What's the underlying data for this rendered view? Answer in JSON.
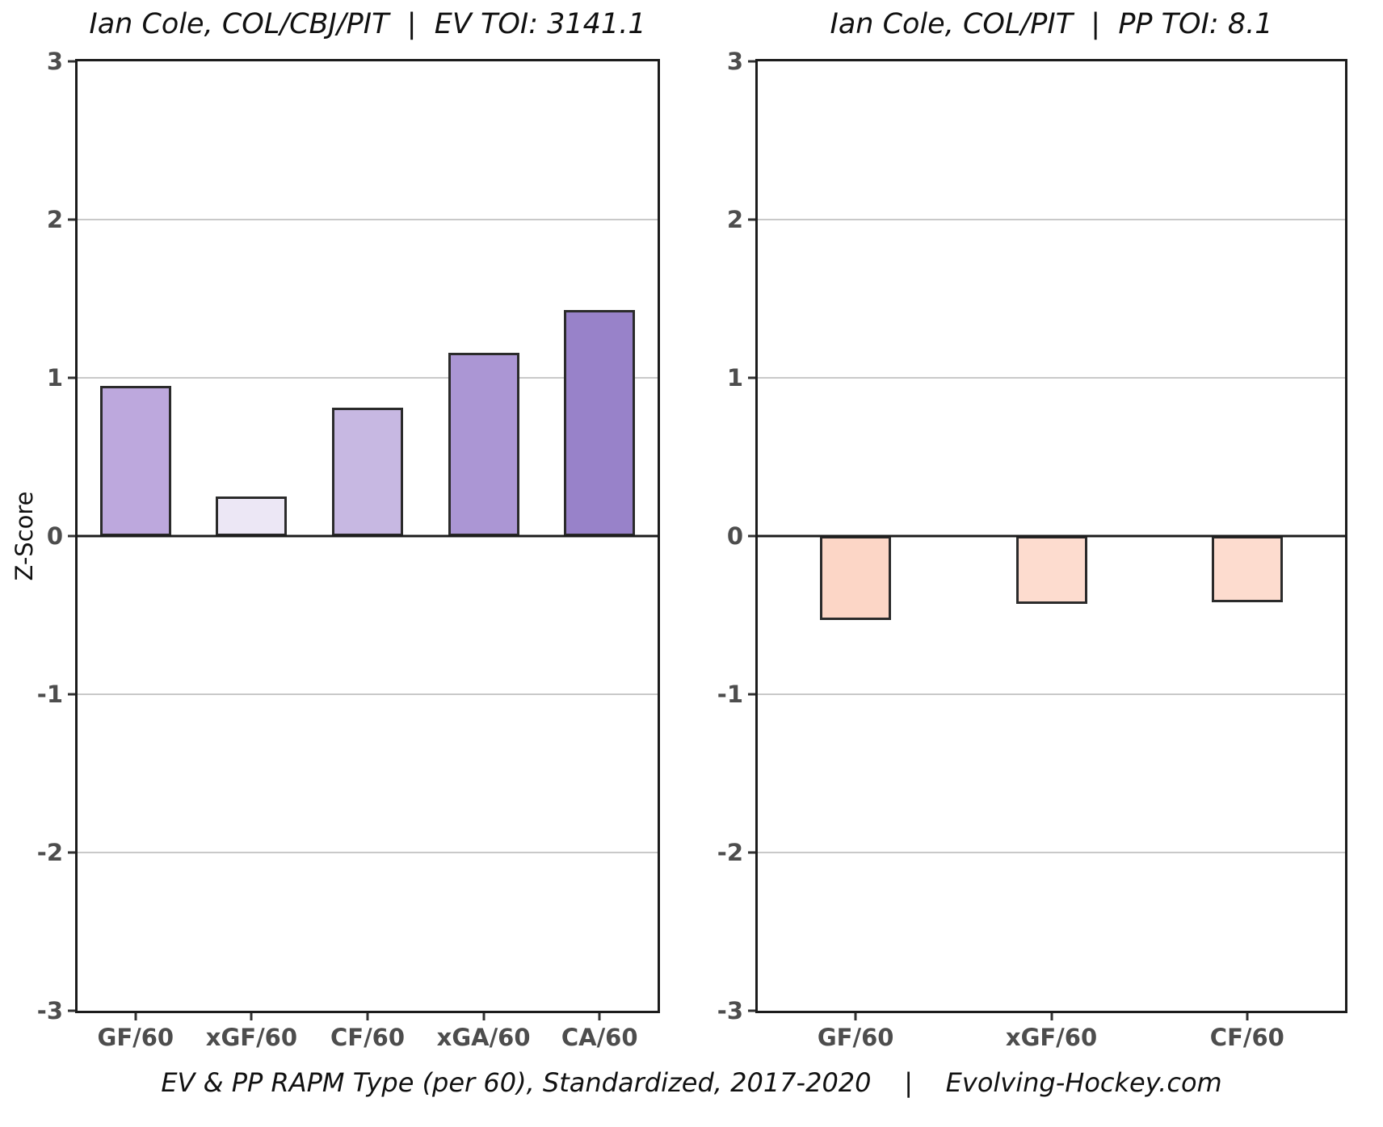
{
  "caption": "EV & PP RAPM Type (per 60), Standardized, 2017-2020    |    Evolving-Hockey.com",
  "ylabel": "Z-Score",
  "colors": {
    "background": "#ffffff",
    "panel_border": "#1c1c1c",
    "bar_outline": "#2b2b2b",
    "gridline": "#c9c9c9",
    "zero_line": "#1c1c1c",
    "tick_label": "#4d4d4d",
    "title_text": "#111111"
  },
  "chart_data": [
    {
      "type": "bar",
      "title": "Ian Cole, COL/CBJ/PIT  |  EV TOI: 3141.1",
      "categories": [
        "GF/60",
        "xGF/60",
        "CF/60",
        "xGA/60",
        "CA/60"
      ],
      "values": [
        0.95,
        0.25,
        0.81,
        1.16,
        1.43
      ],
      "bar_colors": [
        "#bda8dd",
        "#ece7f5",
        "#c7b8e2",
        "#ab96d4",
        "#9882c9"
      ],
      "ylabel": "Z-Score",
      "ylim": [
        -3,
        3
      ],
      "yticks": [
        3,
        2,
        1,
        0,
        -1,
        -2,
        -3
      ],
      "grid": true,
      "legend": false
    },
    {
      "type": "bar",
      "title": "Ian Cole, COL/PIT  |  PP TOI: 8.1",
      "categories": [
        "GF/60",
        "xGF/60",
        "CF/60"
      ],
      "values": [
        -0.53,
        -0.43,
        -0.42
      ],
      "bar_colors": [
        "#fcd6c6",
        "#fddccf",
        "#fddccf"
      ],
      "ylabel": "Z-Score",
      "ylim": [
        -3,
        3
      ],
      "yticks": [
        3,
        2,
        1,
        0,
        -1,
        -2,
        -3
      ],
      "grid": true,
      "legend": false
    }
  ]
}
